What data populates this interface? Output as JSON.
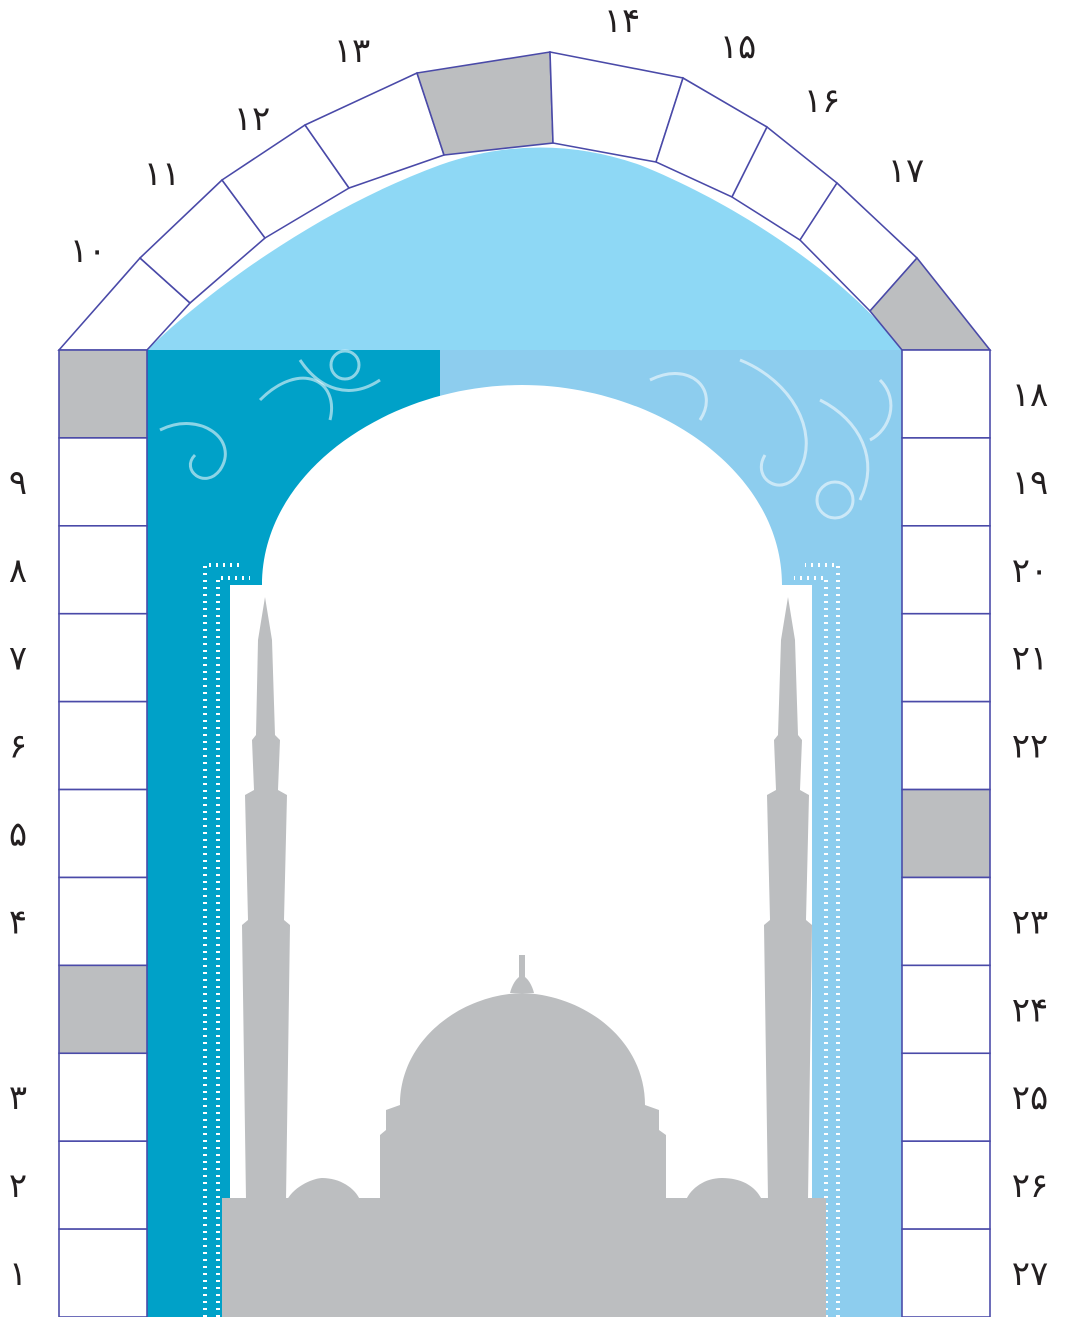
{
  "colors": {
    "outline": "#4a4aa8",
    "shaded_cell": "#bcbec0",
    "empty_cell": "#ffffff",
    "sky": "#8ed8f5",
    "panel_dark": "#00a1c8",
    "panel_light": "#8dcdee",
    "mosque": "#bcbec0",
    "number_text": "#231f20"
  },
  "left_column": {
    "cells": [
      {
        "shaded": true,
        "label": ""
      },
      {
        "shaded": false,
        "label": "۹"
      },
      {
        "shaded": false,
        "label": "۸"
      },
      {
        "shaded": false,
        "label": "۷"
      },
      {
        "shaded": false,
        "label": "۶"
      },
      {
        "shaded": false,
        "label": "۵"
      },
      {
        "shaded": false,
        "label": "۴"
      },
      {
        "shaded": true,
        "label": ""
      },
      {
        "shaded": false,
        "label": "۳"
      },
      {
        "shaded": false,
        "label": "۲"
      },
      {
        "shaded": false,
        "label": "۱"
      }
    ]
  },
  "right_column": {
    "cells": [
      {
        "shaded": false,
        "label": "۱۸"
      },
      {
        "shaded": false,
        "label": "۱۹"
      },
      {
        "shaded": false,
        "label": "۲۰"
      },
      {
        "shaded": false,
        "label": "۲۱"
      },
      {
        "shaded": false,
        "label": "۲۲"
      },
      {
        "shaded": true,
        "label": ""
      },
      {
        "shaded": false,
        "label": "۲۳"
      },
      {
        "shaded": false,
        "label": "۲۴"
      },
      {
        "shaded": false,
        "label": "۲۵"
      },
      {
        "shaded": false,
        "label": "۲۶"
      },
      {
        "shaded": false,
        "label": "۲۷"
      }
    ]
  },
  "arch": {
    "segments": [
      {
        "shaded": false,
        "label": "۱۰"
      },
      {
        "shaded": false,
        "label": "۱۱"
      },
      {
        "shaded": false,
        "label": "۱۲"
      },
      {
        "shaded": false,
        "label": "۱۳"
      },
      {
        "shaded": true,
        "label": ""
      },
      {
        "shaded": false,
        "label": "۱۴"
      },
      {
        "shaded": false,
        "label": "۱۵"
      },
      {
        "shaded": false,
        "label": "۱۶"
      },
      {
        "shaded": false,
        "label": "۱۷"
      },
      {
        "shaded": true,
        "label": ""
      }
    ]
  }
}
